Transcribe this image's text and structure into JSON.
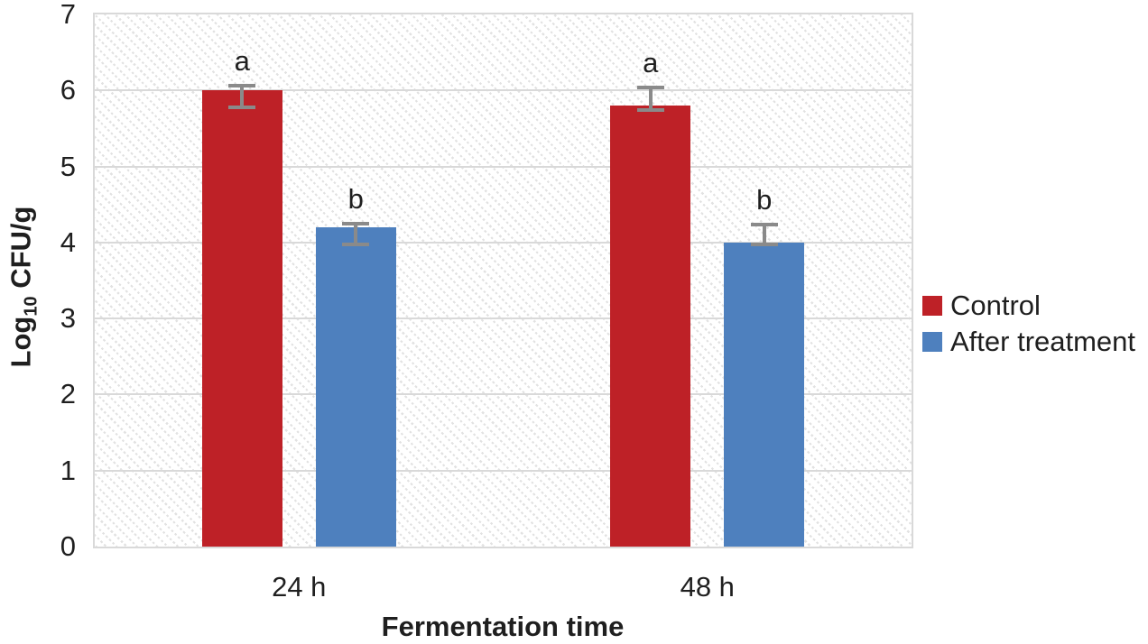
{
  "chart_data": {
    "type": "bar",
    "title": "",
    "categories": [
      "24 h",
      "48 h"
    ],
    "series": [
      {
        "name": "Control",
        "color": "#be2127",
        "values": [
          6.0,
          5.8
        ],
        "error_bars": [
          {
            "top": 6.06,
            "bottom": 5.78
          },
          {
            "top": 6.04,
            "bottom": 5.74
          }
        ],
        "labels": [
          "a",
          "a"
        ]
      },
      {
        "name": "After treatment",
        "color": "#4e80be",
        "values": [
          4.2,
          4.0
        ],
        "error_bars": [
          {
            "top": 4.25,
            "bottom": 3.97
          },
          {
            "top": 4.24,
            "bottom": 3.97
          }
        ],
        "labels": [
          "b",
          "b"
        ]
      }
    ],
    "xlabel": "Fermentation time",
    "ylabel": "Log10 CFU/g",
    "ylabel_main": "Log",
    "ylabel_sub": "10",
    "ylabel_rest": " CFU/g",
    "ylim": [
      0,
      7
    ],
    "yticks": [
      0,
      1,
      2,
      3,
      4,
      5,
      6,
      7
    ],
    "grid": "horizontal",
    "legend_position": "right",
    "plot_background": "diagonal-hatch-pattern",
    "colors": {
      "gridline": "#d9d9d9",
      "error_bar": "#8a8a8a",
      "text": "#1f1f1f",
      "hatch": "#e2e2e2"
    }
  }
}
